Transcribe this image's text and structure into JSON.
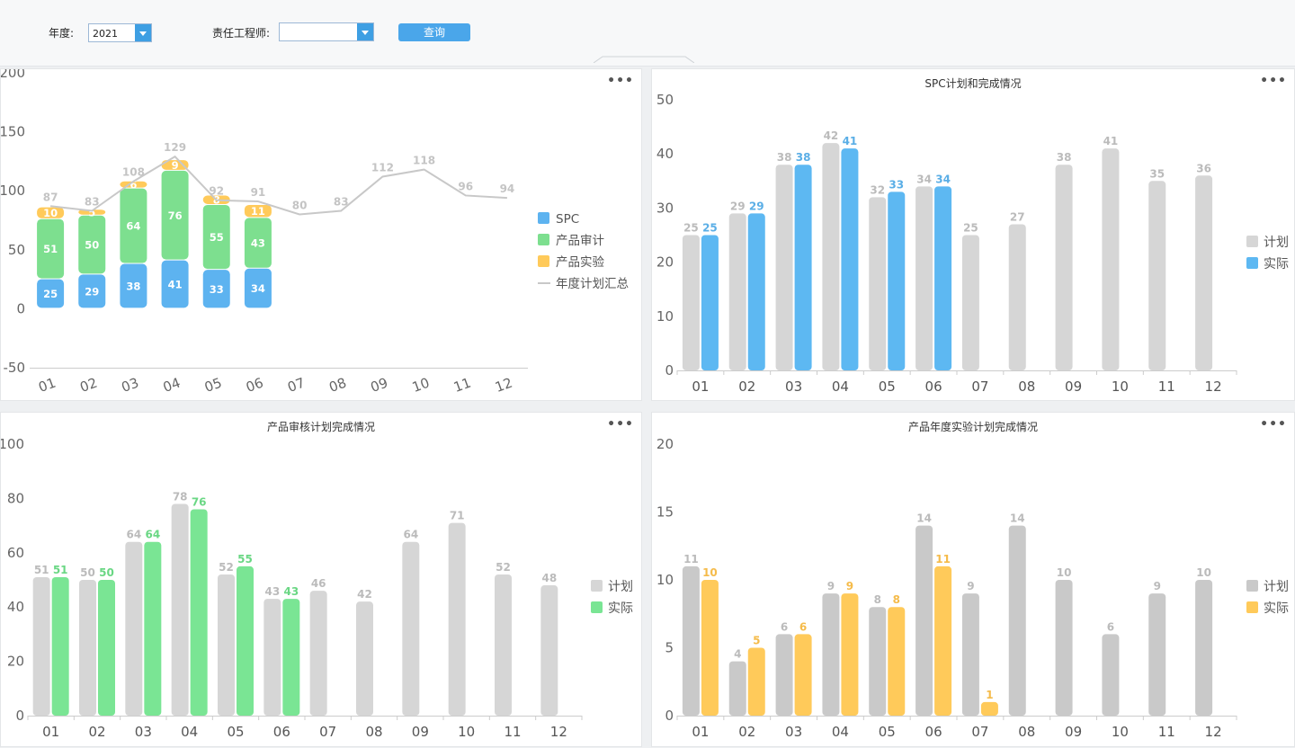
{
  "filters": {
    "year_label": "年度:",
    "year_value": "2021",
    "engineer_label": "责任工程师:",
    "engineer_value": "",
    "query_label": "查询"
  },
  "more_label": "•••",
  "colors": {
    "spc": "#5db3f0",
    "audit": "#7ddf8f",
    "exp": "#ffca5a",
    "line": "#c8c8c8",
    "plan": "#d6d6d6"
  },
  "chart_data": [
    {
      "type": "bar",
      "stacked": true,
      "title": "",
      "categories": [
        "01",
        "02",
        "03",
        "04",
        "05",
        "06",
        "07",
        "08",
        "09",
        "10",
        "11",
        "12"
      ],
      "ylim": [
        -50,
        200
      ],
      "yticks": [
        -50,
        0,
        50,
        100,
        150,
        200
      ],
      "legend_position": "right",
      "series": [
        {
          "name": "SPC",
          "kind": "bar",
          "color": "#5db3f0",
          "values": [
            25,
            29,
            38,
            41,
            33,
            34,
            null,
            null,
            null,
            null,
            null,
            null
          ]
        },
        {
          "name": "产品审计",
          "kind": "bar",
          "color": "#7ddf8f",
          "values": [
            51,
            50,
            64,
            76,
            55,
            43,
            null,
            null,
            null,
            null,
            null,
            null
          ]
        },
        {
          "name": "产品实验",
          "kind": "bar",
          "color": "#ffca5a",
          "values": [
            10,
            5,
            6,
            9,
            8,
            11,
            null,
            null,
            null,
            null,
            null,
            null
          ]
        },
        {
          "name": "年度计划汇总",
          "kind": "line",
          "color": "#c8c8c8",
          "values": [
            87,
            83,
            108,
            129,
            92,
            91,
            80,
            83,
            112,
            118,
            96,
            94
          ]
        }
      ]
    },
    {
      "type": "bar",
      "title": "SPC计划和完成情况",
      "categories": [
        "01",
        "02",
        "03",
        "04",
        "05",
        "06",
        "07",
        "08",
        "09",
        "10",
        "11",
        "12"
      ],
      "ylim": [
        0,
        50
      ],
      "yticks": [
        0,
        10,
        20,
        30,
        40,
        50
      ],
      "legend_position": "right",
      "series": [
        {
          "name": "计划",
          "color": "#d6d6d6",
          "labelColor": "#bbbbbb",
          "values": [
            25,
            29,
            38,
            42,
            32,
            34,
            25,
            27,
            38,
            41,
            35,
            36
          ]
        },
        {
          "name": "实际",
          "color": "#5db8f2",
          "labelColor": "#5aaee6",
          "values": [
            25,
            29,
            38,
            41,
            33,
            34,
            null,
            null,
            null,
            null,
            null,
            null
          ]
        }
      ]
    },
    {
      "type": "bar",
      "title": "产品审核计划完成情况",
      "categories": [
        "01",
        "02",
        "03",
        "04",
        "05",
        "06",
        "07",
        "08",
        "09",
        "10",
        "11",
        "12"
      ],
      "ylim": [
        0,
        100
      ],
      "yticks": [
        0,
        20,
        40,
        60,
        80,
        100
      ],
      "legend_position": "right",
      "series": [
        {
          "name": "计划",
          "color": "#d6d6d6",
          "labelColor": "#bbbbbb",
          "values": [
            51,
            50,
            64,
            78,
            52,
            43,
            46,
            42,
            64,
            71,
            52,
            48
          ]
        },
        {
          "name": "实际",
          "color": "#7ae594",
          "labelColor": "#6ad784",
          "values": [
            51,
            50,
            64,
            76,
            55,
            43,
            null,
            null,
            null,
            null,
            null,
            null
          ]
        }
      ]
    },
    {
      "type": "bar",
      "title": "产品年度实验计划完成情况",
      "categories": [
        "01",
        "02",
        "03",
        "04",
        "05",
        "06",
        "07",
        "08",
        "09",
        "10",
        "11",
        "12"
      ],
      "ylim": [
        0,
        20
      ],
      "yticks": [
        0,
        5,
        10,
        15,
        20
      ],
      "legend_position": "right",
      "series": [
        {
          "name": "计划",
          "color": "#c9c9c9",
          "labelColor": "#bbbbbb",
          "values": [
            11,
            4,
            6,
            9,
            8,
            14,
            9,
            14,
            10,
            6,
            9,
            10
          ]
        },
        {
          "name": "实际",
          "color": "#ffca5a",
          "labelColor": "#f5bb4a",
          "values": [
            10,
            5,
            6,
            9,
            8,
            11,
            1,
            null,
            null,
            null,
            null,
            null
          ]
        }
      ]
    }
  ]
}
